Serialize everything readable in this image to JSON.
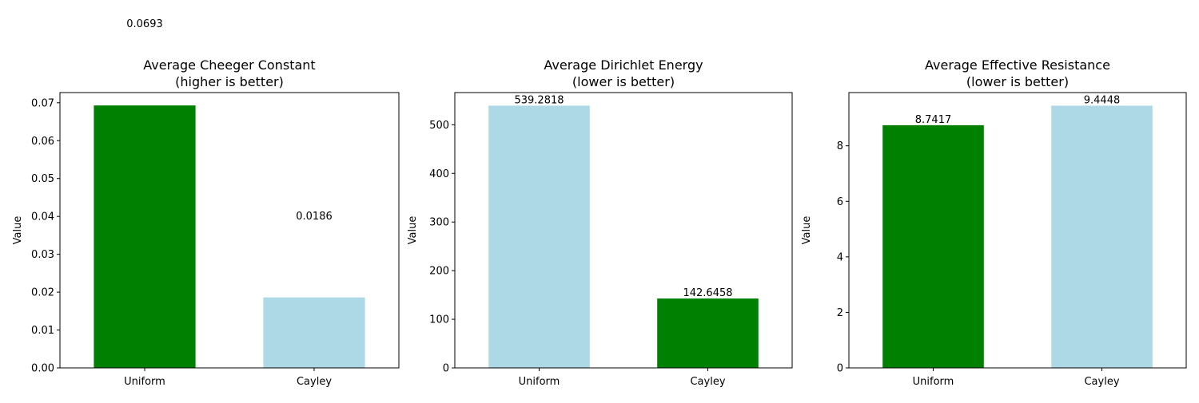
{
  "colors": {
    "better": "#008000",
    "worse": "#add8e6",
    "axis": "#000000"
  },
  "chart_data": [
    {
      "type": "bar",
      "title_line1": "Average Cheeger Constant",
      "title_line2": "(higher is better)",
      "ylabel": "Value",
      "categories": [
        "Uniform",
        "Cayley"
      ],
      "values": [
        0.0693,
        0.0186
      ],
      "value_labels": [
        "0.0693",
        "0.0186"
      ],
      "bar_colors": [
        "#008000",
        "#add8e6"
      ],
      "ylim": [
        0,
        0.0727
      ],
      "yticks": [
        0,
        0.01,
        0.02,
        0.03,
        0.04,
        0.05,
        0.06,
        0.07
      ],
      "ytick_labels": [
        "0.00",
        "0.01",
        "0.02",
        "0.03",
        "0.04",
        "0.05",
        "0.06",
        "0.07"
      ],
      "value_label_offset": 0.02
    },
    {
      "type": "bar",
      "title_line1": "Average Dirichlet Energy",
      "title_line2": "(lower is better)",
      "ylabel": "Value",
      "categories": [
        "Uniform",
        "Cayley"
      ],
      "values": [
        539.2818,
        142.6458
      ],
      "value_labels": [
        "539.2818",
        "142.6458"
      ],
      "bar_colors": [
        "#add8e6",
        "#008000"
      ],
      "ylim": [
        0,
        566.2
      ],
      "yticks": [
        0,
        100,
        200,
        300,
        400,
        500
      ],
      "ytick_labels": [
        "0",
        "100",
        "200",
        "300",
        "400",
        "500"
      ],
      "value_label_offset": 0
    },
    {
      "type": "bar",
      "title_line1": "Average Effective Resistance",
      "title_line2": "(lower is better)",
      "ylabel": "Value",
      "categories": [
        "Uniform",
        "Cayley"
      ],
      "values": [
        8.7417,
        9.4448
      ],
      "value_labels": [
        "8.7417",
        "9.4448"
      ],
      "bar_colors": [
        "#008000",
        "#add8e6"
      ],
      "ylim": [
        0,
        9.917
      ],
      "yticks": [
        0,
        2,
        4,
        6,
        8
      ],
      "ytick_labels": [
        "0",
        "2",
        "4",
        "6",
        "8"
      ],
      "value_label_offset": 0
    }
  ]
}
